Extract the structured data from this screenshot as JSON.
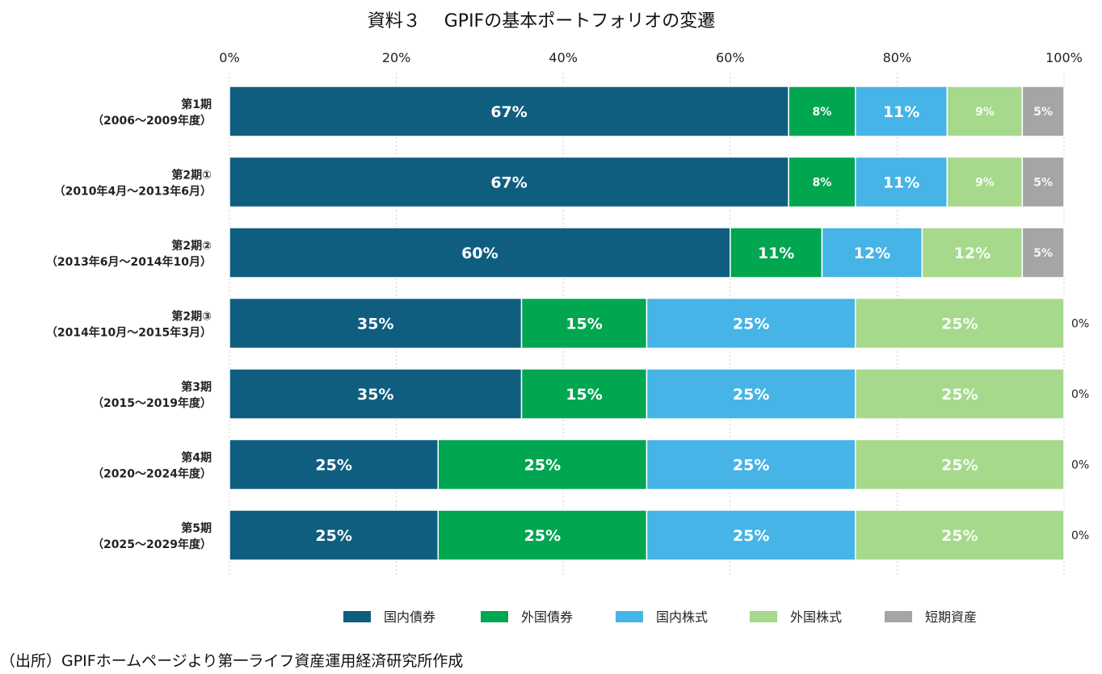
{
  "title": "資料３　 GPIFの基本ポートフォリオの変遷",
  "source": "（出所）GPIFホームページより第一ライフ資産運用経済研究所作成",
  "chart_data": {
    "type": "bar",
    "orientation": "horizontal",
    "stacked": true,
    "title": "資料３　 GPIFの基本ポートフォリオの変遷",
    "xlabel": "",
    "ylabel": "",
    "xlim": [
      0,
      100
    ],
    "x_ticks": [
      "0%",
      "20%",
      "40%",
      "60%",
      "80%",
      "100%"
    ],
    "grid": true,
    "legend_position": "bottom",
    "categories": [
      {
        "line1": "第1期",
        "line2": "（2006～2009年度）"
      },
      {
        "line1": "第2期①",
        "line2": "（2010年4月～2013年6月）"
      },
      {
        "line1": "第2期②",
        "line2": "（2013年6月～2014年10月）"
      },
      {
        "line1": "第2期③",
        "line2": "（2014年10月～2015年3月）"
      },
      {
        "line1": "第3期",
        "line2": "（2015～2019年度）"
      },
      {
        "line1": "第4期",
        "line2": "（2020～2024年度）"
      },
      {
        "line1": "第5期",
        "line2": "（2025～2029年度）"
      }
    ],
    "series": [
      {
        "name": "国内債券",
        "color": "#0f5e80",
        "values": [
          67,
          67,
          60,
          35,
          35,
          25,
          25
        ],
        "labels": [
          "67%",
          "67%",
          "60%",
          "35%",
          "35%",
          "25%",
          "25%"
        ]
      },
      {
        "name": "外国債券",
        "color": "#00a650",
        "values": [
          8,
          8,
          11,
          15,
          15,
          25,
          25
        ],
        "labels": [
          "8%",
          "8%",
          "11%",
          "15%",
          "15%",
          "25%",
          "25%"
        ]
      },
      {
        "name": "国内株式",
        "color": "#46b4e6",
        "values": [
          11,
          11,
          12,
          25,
          25,
          25,
          25
        ],
        "labels": [
          "11%",
          "11%",
          "12%",
          "25%",
          "25%",
          "25%",
          "25%"
        ]
      },
      {
        "name": "外国株式",
        "color": "#a6d98c",
        "values": [
          9,
          9,
          12,
          25,
          25,
          25,
          25
        ],
        "labels": [
          "9%",
          "9%",
          "12%",
          "25%",
          "25%",
          "25%",
          "25%"
        ]
      },
      {
        "name": "短期資産",
        "color": "#a5a5a5",
        "values": [
          5,
          5,
          5,
          0,
          0,
          0,
          0
        ],
        "labels": [
          "5%",
          "5%",
          "5%",
          "0%",
          "0%",
          "0%",
          "0%"
        ]
      }
    ]
  }
}
